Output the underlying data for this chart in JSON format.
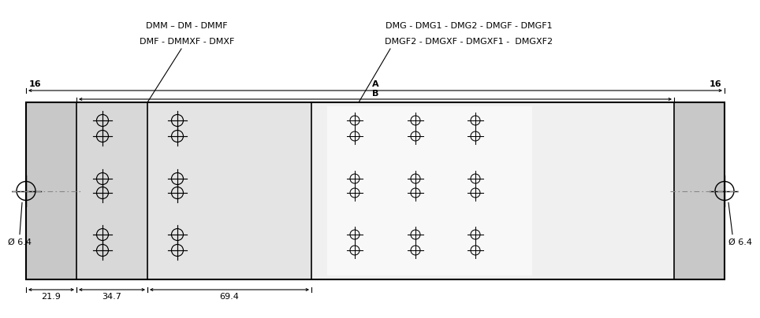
{
  "title_left_line1": "DMM – DM - DMMF",
  "title_left_line2": "DMF - DMMXF - DMXF",
  "title_right_line1": "DMG - DMG1 - DMG2 - DMGF - DMGF1",
  "title_right_line2": "DMGF2 - DMGXF - DMGXF1 -  DMGXF2",
  "label_A": "A",
  "label_B": "B",
  "dim_left": "16",
  "dim_right": "16",
  "dim_21_9": "21.9",
  "dim_34_7": "34.7",
  "dim_69_4": "69.4",
  "dim_diameter": "Ø 6.4",
  "col_bg_gray": "#c8c8c8",
  "col_bg_light": "#d8d8d8",
  "col_bg_lighter": "#e4e4e4",
  "col_bg_white": "#f0f0f0",
  "col_line": "#000000",
  "col_text": "#000000",
  "col_dash": "#888888"
}
